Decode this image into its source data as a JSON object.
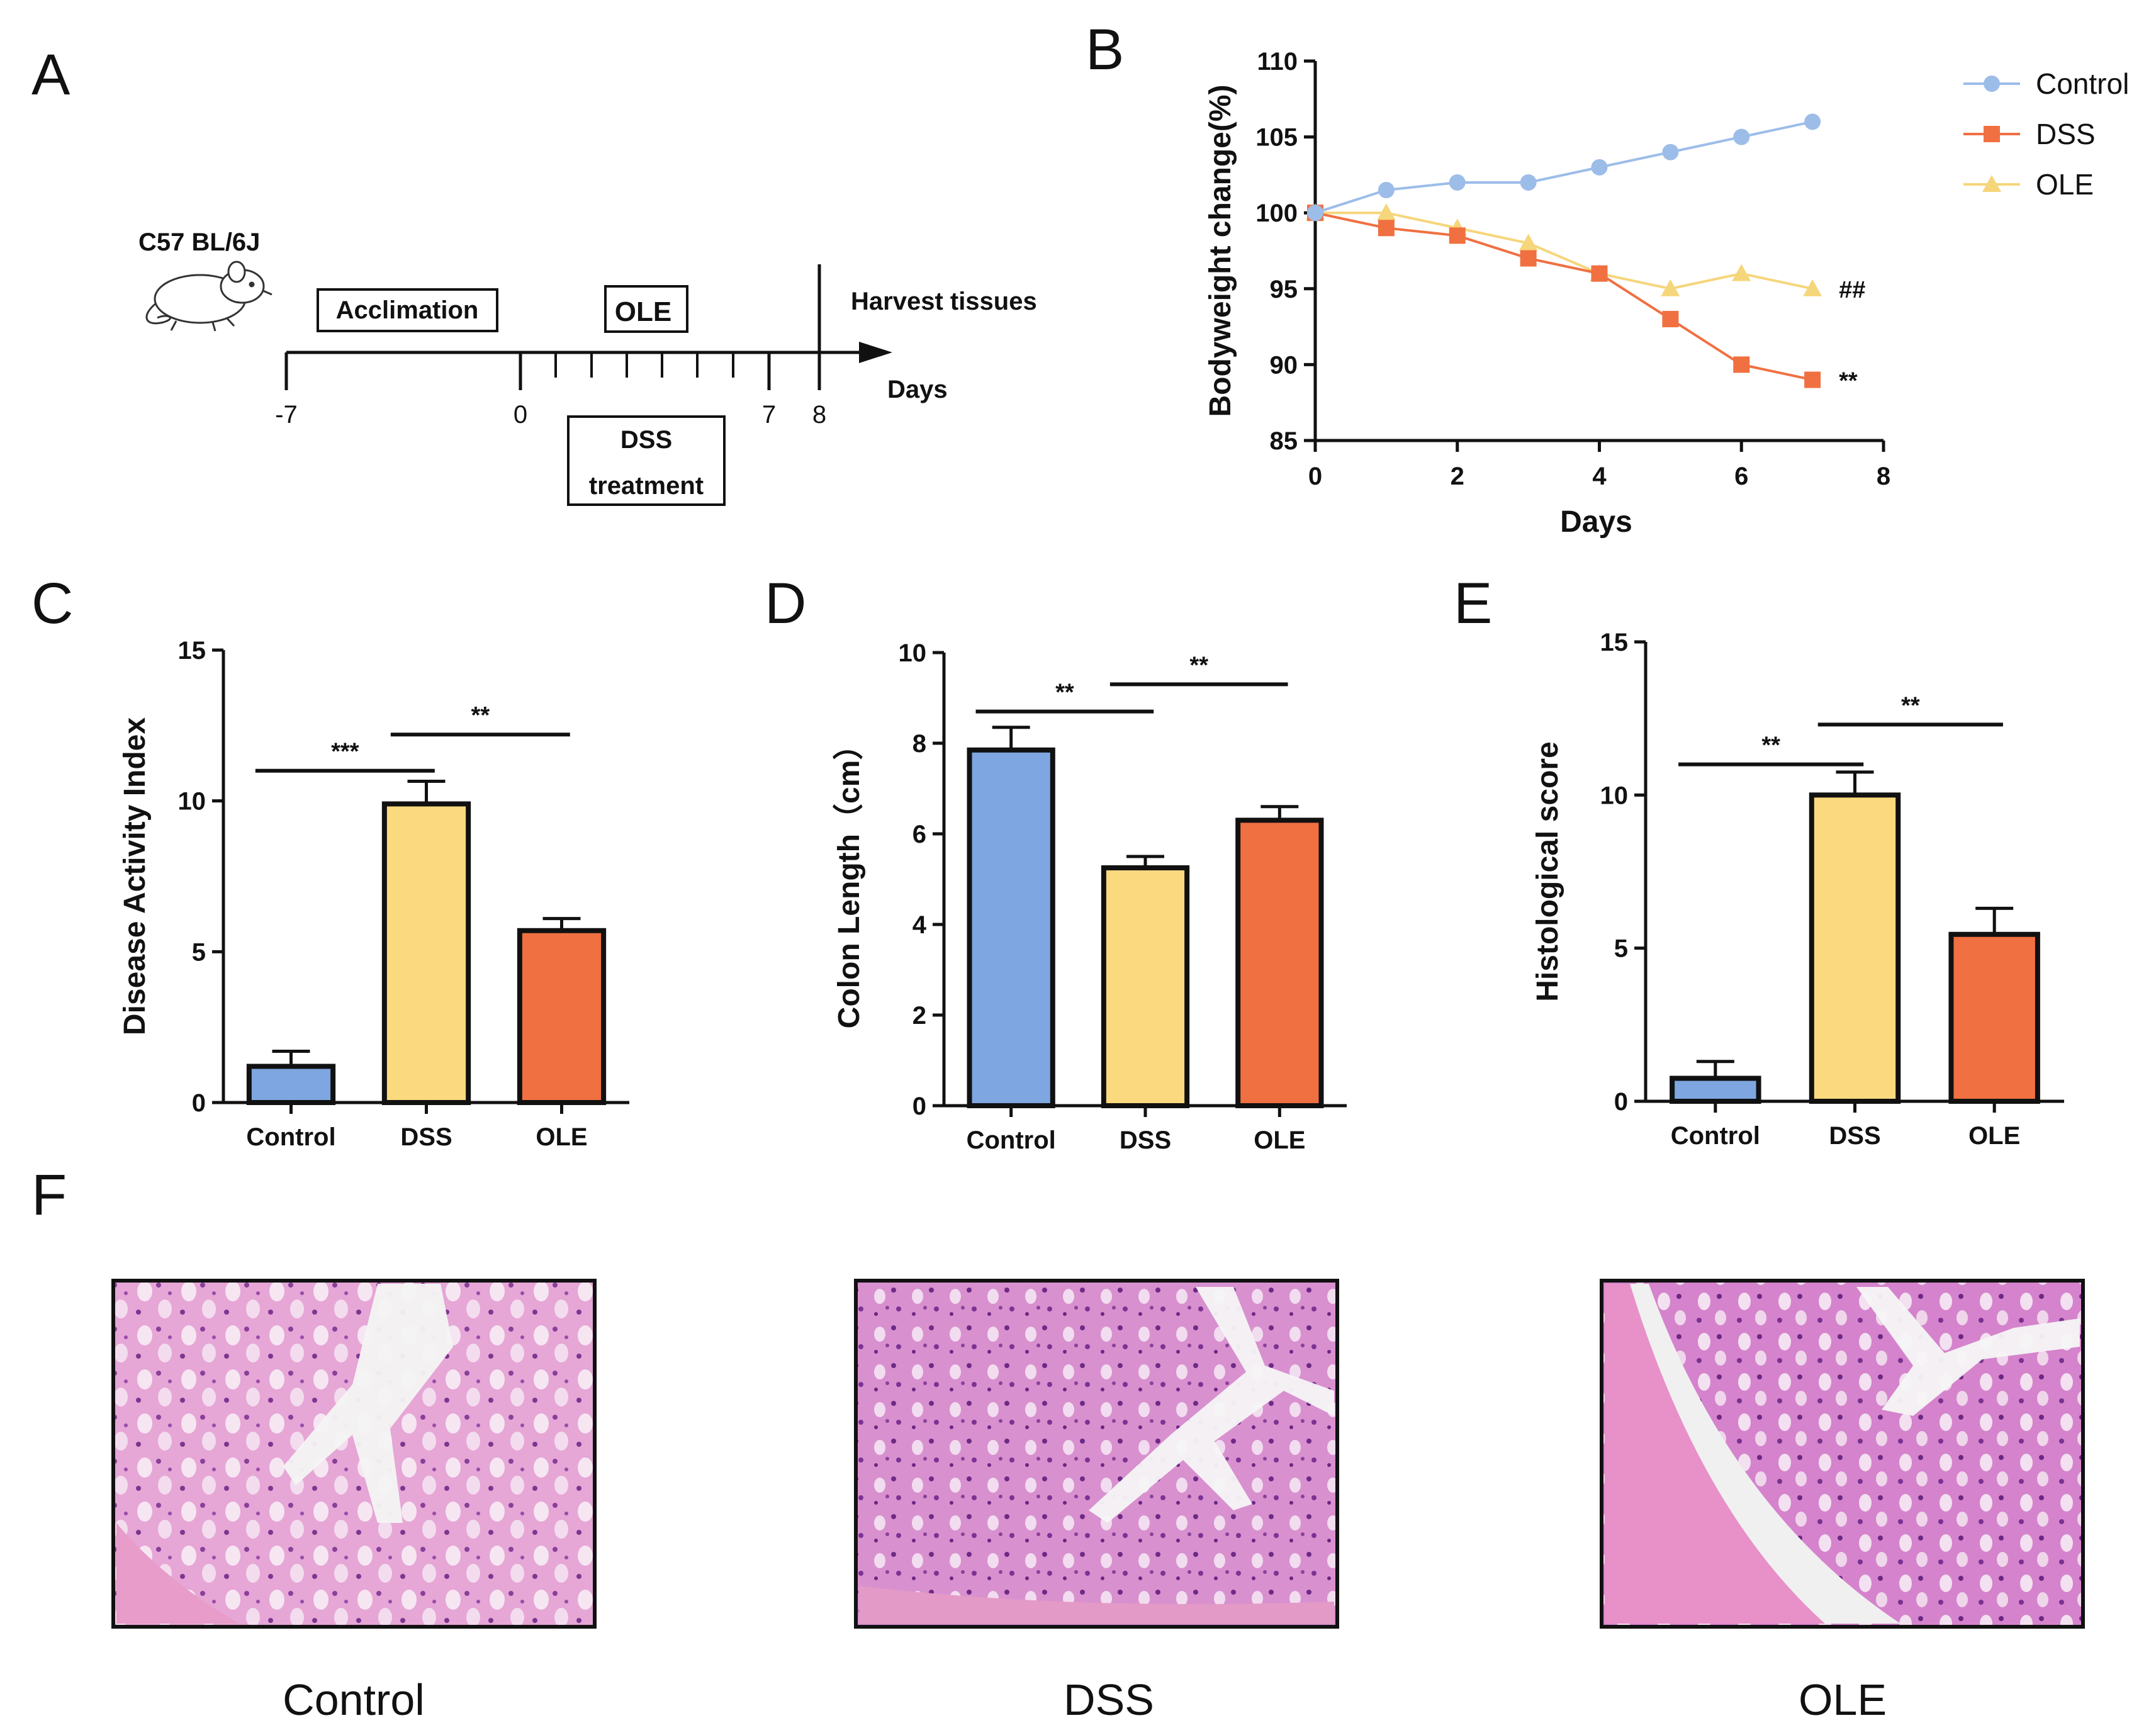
{
  "panels": {
    "A": "A",
    "B": "B",
    "C": "C",
    "D": "D",
    "E": "E",
    "F": "F"
  },
  "colors": {
    "control": "#7ea6e0",
    "dss": "#fbd97e",
    "ole": "#f07042",
    "dss_line": "#f07042",
    "ole_line": "#f6d67b",
    "control_line": "#9dbde9"
  },
  "timeline": {
    "strain": "C57 BL/6J",
    "acclimation": "Acclimation",
    "ole": "OLE",
    "harvest": "Harvest tissues",
    "days": "Days",
    "dss_line1": "DSS",
    "dss_line2": "treatment",
    "ticks": {
      "m7": "-7",
      "d0": "0",
      "d7": "7",
      "d8": "8"
    }
  },
  "chart_data": [
    {
      "panel": "B",
      "type": "line",
      "xlabel": "Days",
      "ylabel": "Bodyweight change(%)",
      "xlim": [
        0,
        8
      ],
      "ylim": [
        85,
        110
      ],
      "xticks": [
        0,
        2,
        4,
        6,
        8
      ],
      "yticks": [
        85,
        90,
        95,
        100,
        105,
        110
      ],
      "x": [
        0,
        1,
        2,
        3,
        4,
        5,
        6,
        7
      ],
      "legend_position": "top-right",
      "series": [
        {
          "name": "Control",
          "marker": "circle",
          "values": [
            100,
            101.5,
            102,
            102,
            103,
            104,
            105,
            106
          ],
          "annotation": ""
        },
        {
          "name": "DSS",
          "marker": "square",
          "values": [
            100,
            99,
            98.5,
            97,
            96,
            93,
            90,
            89
          ],
          "annotation": "**"
        },
        {
          "name": "OLE",
          "marker": "triangle",
          "values": [
            100,
            100,
            99,
            98,
            96,
            95,
            96,
            95
          ],
          "annotation": "##"
        }
      ]
    },
    {
      "panel": "C",
      "type": "bar",
      "ylabel": "Disease Activity Index",
      "ylim": [
        0,
        15
      ],
      "yticks": [
        0,
        5,
        10,
        15
      ],
      "categories": [
        "Control",
        "DSS",
        "OLE"
      ],
      "values": [
        1.2,
        9.9,
        5.7
      ],
      "errors": [
        0.5,
        0.75,
        0.4
      ],
      "comparisons": [
        {
          "from": 0,
          "to": 1,
          "label": "***",
          "level": 11.0
        },
        {
          "from": 1,
          "to": 2,
          "label": "**",
          "level": 12.2
        }
      ]
    },
    {
      "panel": "D",
      "type": "bar",
      "ylabel": "Colon Length（cm）",
      "ylim": [
        0,
        10
      ],
      "yticks": [
        0,
        2,
        4,
        6,
        8,
        10
      ],
      "categories": [
        "Control",
        "DSS",
        "OLE"
      ],
      "values": [
        7.85,
        5.25,
        6.3
      ],
      "errors": [
        0.5,
        0.25,
        0.3
      ],
      "comparisons": [
        {
          "from": 0,
          "to": 1,
          "label": "**",
          "level": 8.7
        },
        {
          "from": 1,
          "to": 2,
          "label": "**",
          "level": 9.3
        }
      ]
    },
    {
      "panel": "E",
      "type": "bar",
      "ylabel": "Histological score",
      "ylim": [
        0,
        15
      ],
      "yticks": [
        0,
        5,
        10,
        15
      ],
      "categories": [
        "Control",
        "DSS",
        "OLE"
      ],
      "values": [
        0.75,
        10.0,
        5.45
      ],
      "errors": [
        0.55,
        0.75,
        0.85
      ],
      "comparisons": [
        {
          "from": 0,
          "to": 1,
          "label": "**",
          "level": 11.0
        },
        {
          "from": 1,
          "to": 2,
          "label": "**",
          "level": 12.3
        }
      ]
    }
  ],
  "micrographs": {
    "control_label": "Control",
    "dss_label": "DSS",
    "ole_label": "OLE"
  }
}
